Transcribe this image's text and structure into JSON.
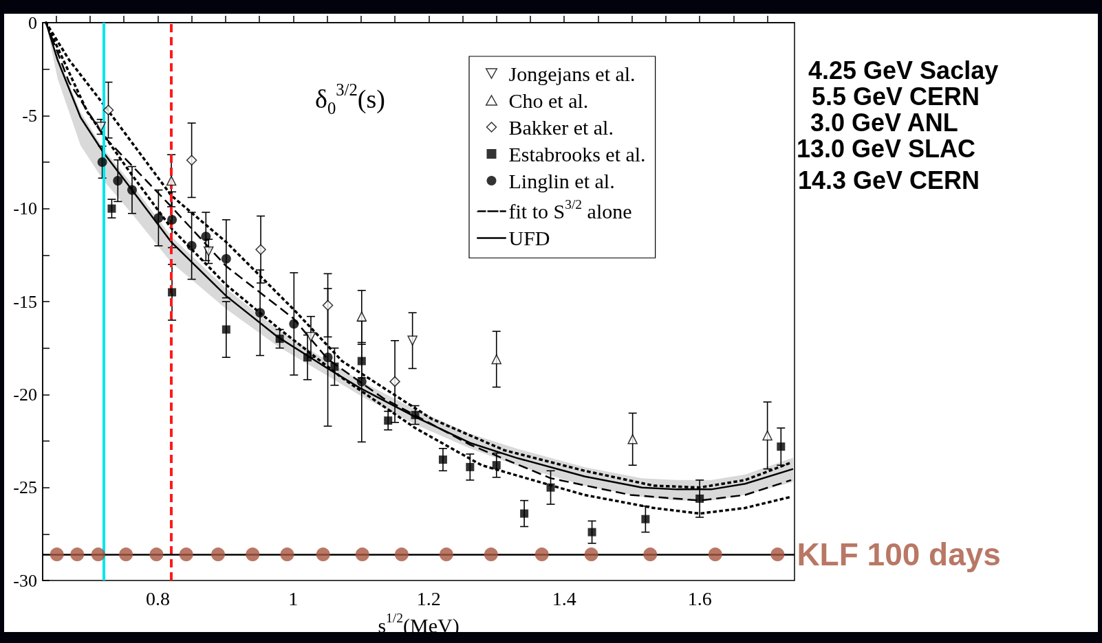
{
  "chart_data": {
    "type": "scatter",
    "xlabel": "s$^{1/2}$(MeV)",
    "xlim": [
      0.63,
      1.74
    ],
    "xticks": [
      {
        "value": 0.65,
        "label": null
      },
      {
        "value": 0.7,
        "label": null
      },
      {
        "value": 0.75,
        "label": null
      },
      0.8,
      {
        "value": 0.85,
        "label": null
      },
      {
        "value": 0.9,
        "label": null
      },
      {
        "value": 0.95,
        "label": null
      },
      1,
      {
        "value": 1.05,
        "label": null
      },
      {
        "value": 1.1,
        "label": null
      },
      {
        "value": 1.15,
        "label": null
      },
      1.2,
      {
        "value": 1.25,
        "label": null
      },
      {
        "value": 1.3,
        "label": null
      },
      {
        "value": 1.35,
        "label": null
      },
      1.4,
      {
        "value": 1.45,
        "label": null
      },
      {
        "value": 1.5,
        "label": null
      },
      {
        "value": 1.55,
        "label": null
      },
      1.6,
      {
        "value": 1.65,
        "label": null
      },
      {
        "value": 1.7,
        "label": null
      }
    ],
    "ylim": [
      -30,
      0
    ],
    "yticks": [
      -30,
      {
        "value": -27.5,
        "label": null
      },
      -25,
      {
        "value": -22.5,
        "label": null
      },
      -20,
      {
        "value": -17.5,
        "label": null
      },
      -15,
      {
        "value": -12.5,
        "label": null
      },
      -10,
      {
        "value": -7.5,
        "label": null
      },
      -5,
      {
        "value": -2.5,
        "label": null
      },
      0
    ],
    "grid": false,
    "legend": "top right",
    "annotations": [
      "δ$_{0}$$^{3/2}$(s)",
      "4.25 GeV Saclay",
      "5.5 GeV CERN",
      "3.0 GeV ANL",
      "13.0 GeV SLAC",
      "14.3 GeV CERN"
    ],
    "ref_lines": [
      {
        "axis": "x",
        "value": 0.724,
        "color": "#00e5ee",
        "line_style": "solid"
      },
      {
        "axis": "x",
        "value": 0.82,
        "color": "#ff1a1a",
        "line_style": "dashed"
      },
      {
        "axis": "y",
        "value": -28.6,
        "color": "#000000",
        "line_style": "solid"
      }
    ],
    "series": [
      {
        "name": "Jongejans et al.",
        "color": "#000000",
        "marker": "triangle-down",
        "x": [
          0.716,
          0.875,
          1.026,
          1.176
        ],
        "values": [
          -5.6,
          -12.3,
          -16.9,
          -17.1
        ],
        "errors": [
          0.4,
          0.65,
          1.1,
          1.5
        ]
      },
      {
        "name": "Cho et al.",
        "color": "#000000",
        "marker": "triangle",
        "x": [
          0.82,
          1.101,
          1.3,
          1.501,
          1.7
        ],
        "values": [
          -8.5,
          -15.8,
          -18.1,
          -22.4,
          -22.2
        ],
        "errors": [
          1.4,
          1.4,
          1.5,
          1.4,
          1.8
        ]
      },
      {
        "name": "Bakker et al.",
        "color": "#000000",
        "marker": "diamond",
        "x": [
          0.727,
          0.85,
          0.952,
          1.051,
          1.15
        ],
        "values": [
          -4.7,
          -7.4,
          -12.2,
          -15.2,
          -19.3
        ],
        "errors": [
          1.5,
          2.0,
          1.8,
          1.7,
          2.2
        ]
      },
      {
        "name": "Estabrooks et al.",
        "color": "#000000",
        "marker": "square",
        "x": [
          0.732,
          0.821,
          0.901,
          0.98,
          1.021,
          1.061,
          1.101,
          1.14,
          1.18,
          1.221,
          1.261,
          1.3,
          1.341,
          1.38,
          1.441,
          1.52,
          1.6,
          1.72
        ],
        "values": [
          -10.0,
          -14.5,
          -16.5,
          -17.0,
          -18.0,
          -18.5,
          -18.2,
          -21.4,
          -21.1,
          -23.5,
          -23.9,
          -23.8,
          -26.4,
          -25.0,
          -27.4,
          -26.7,
          -25.6,
          -22.8
        ],
        "errors": [
          0.5,
          1.5,
          1.5,
          0.5,
          1.2,
          1.0,
          0.9,
          0.5,
          0.5,
          0.6,
          0.7,
          0.65,
          0.7,
          0.9,
          0.6,
          0.7,
          1.0,
          1.0
        ]
      },
      {
        "name": "Linglin et al.",
        "color": "#000000",
        "marker": "circle",
        "x": [
          0.718,
          0.741,
          0.762,
          0.801,
          0.821,
          0.85,
          0.871,
          0.901,
          0.951,
          1.001,
          1.051,
          1.101
        ],
        "values": [
          -7.5,
          -8.5,
          -9.0,
          -10.5,
          -10.6,
          -12.0,
          -11.5,
          -12.7,
          -15.6,
          -16.2,
          -18.0,
          -19.3
        ],
        "errors": [
          0.86,
          1.12,
          1.26,
          1.5,
          1.5,
          1.8,
          1.3,
          2.1,
          2.3,
          2.75,
          3.7,
          3.25
        ]
      },
      {
        "name": "fit to S$^{3/2}$ alone",
        "type": "line",
        "color": "#000000",
        "line_style": "dashed",
        "marker": "none",
        "x": [
          0.635,
          0.669,
          0.72,
          0.82,
          0.901,
          1.0,
          1.051,
          1.133,
          1.261,
          1.38,
          1.498,
          1.6,
          1.667,
          1.735
        ],
        "values": [
          0,
          -3.2,
          -6.1,
          -9.9,
          -13.1,
          -15.9,
          -18.1,
          -20.2,
          -22.7,
          -24.5,
          -25.4,
          -25.7,
          -25.4,
          -24.6
        ]
      },
      {
        "name": "UFD",
        "type": "line",
        "color": "#000000",
        "line_style": "solid",
        "marker": "none",
        "x": [
          0.635,
          0.652,
          0.686,
          0.72,
          0.76,
          0.82,
          0.901,
          0.977,
          1.051,
          1.101,
          1.18,
          1.261,
          1.329,
          1.43,
          1.515,
          1.566,
          1.617,
          1.667,
          1.738
        ],
        "values": [
          0,
          -2.0,
          -5.1,
          -7.0,
          -8.9,
          -11.8,
          -14.7,
          -16.9,
          -18.6,
          -19.7,
          -21.2,
          -22.6,
          -23.4,
          -24.4,
          -25.0,
          -25.1,
          -25.1,
          -24.8,
          -24.0
        ],
        "upper": [
          0,
          -1.8,
          -4.8,
          -6.8,
          -8.6,
          -11.5,
          -14.3,
          -16.5,
          -18.2,
          -19.3,
          -20.8,
          -22.1,
          -22.9,
          -23.9,
          -24.5,
          -24.6,
          -24.6,
          -24.3,
          -23.4
        ],
        "lower": [
          0,
          -3.0,
          -6.6,
          -8.5,
          -10.2,
          -12.9,
          -15.4,
          -17.4,
          -19.0,
          -20.1,
          -21.6,
          -22.9,
          -23.8,
          -24.9,
          -25.5,
          -25.7,
          -25.7,
          -25.4,
          -24.7
        ]
      },
      {
        "type": "line",
        "color": "#000000",
        "line_style": "dotted",
        "marker": "none",
        "x": [
          0.635,
          0.669,
          0.72,
          0.82,
          0.901,
          1.0,
          1.072,
          1.204,
          1.312,
          1.43,
          1.532,
          1.6,
          1.667,
          1.732
        ],
        "values": [
          0,
          -2.0,
          -4.4,
          -9.3,
          -11.8,
          -15.4,
          -18.2,
          -21.3,
          -23.0,
          -24.1,
          -24.9,
          -25.0,
          -24.6,
          -23.7
        ]
      },
      {
        "type": "line",
        "color": "#000000",
        "line_style": "dotted",
        "marker": "none",
        "x": [
          0.635,
          0.696,
          0.76,
          0.821,
          0.901,
          0.977,
          1.072,
          1.18,
          1.278,
          1.363,
          1.43,
          1.532,
          1.6,
          1.667,
          1.735
        ],
        "values": [
          0,
          -4.8,
          -8.1,
          -11.1,
          -14.1,
          -16.4,
          -19.1,
          -21.8,
          -23.8,
          -24.7,
          -25.4,
          -26.1,
          -26.4,
          -26.1,
          -25.5
        ]
      },
      {
        "name": "KLF 100 days",
        "color": "#a8553f",
        "marker": "circle",
        "x": [
          0.651,
          0.681,
          0.712,
          0.753,
          0.798,
          0.842,
          0.889,
          0.94,
          0.991,
          1.044,
          1.102,
          1.16,
          1.226,
          1.292,
          1.367,
          1.44,
          1.527,
          1.623,
          1.715
        ],
        "values": [
          -28.6,
          -28.6,
          -28.6,
          -28.6,
          -28.6,
          -28.6,
          -28.6,
          -28.6,
          -28.6,
          -28.6,
          -28.6,
          -28.6,
          -28.6,
          -28.6,
          -28.6,
          -28.6,
          -28.6,
          -28.6,
          -28.6
        ]
      }
    ]
  }
}
